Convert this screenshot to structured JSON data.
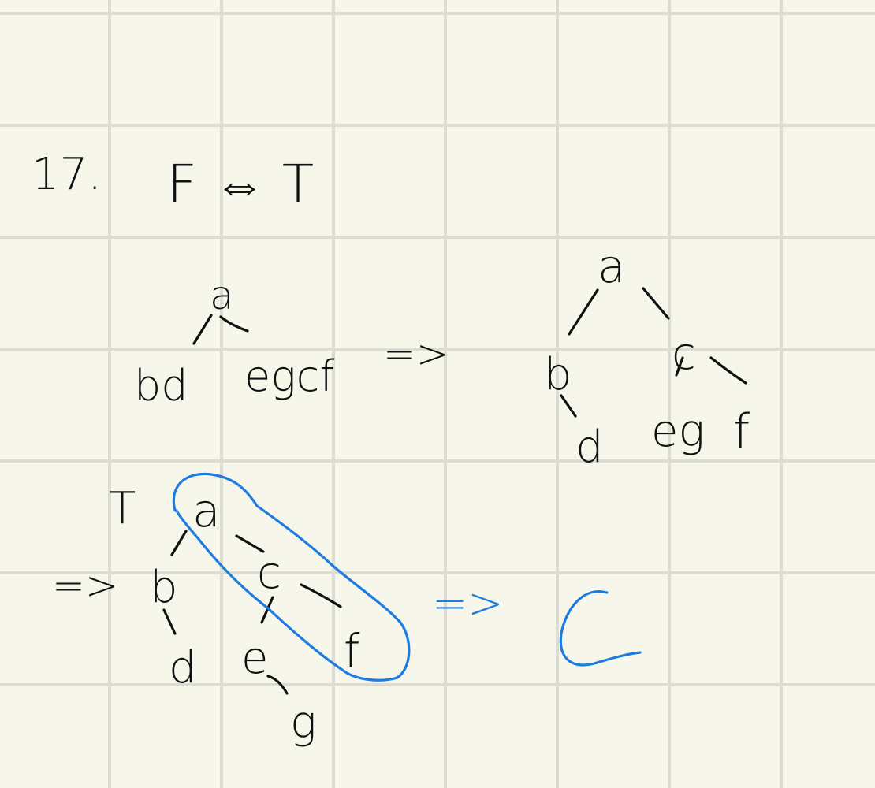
{
  "page": {
    "problem_number": "17.",
    "statement": "F ⇔ T",
    "paper_colors": {
      "background": "#f7f6ea",
      "grid": "#dcdcd2",
      "ink": "#111111",
      "highlight": "#1e7be0"
    }
  },
  "step1": {
    "root": "a",
    "left": "bd",
    "right": "egcf",
    "arrow": "=>"
  },
  "tree1": {
    "root": "a",
    "left": "b",
    "right": "c",
    "left_child": "d",
    "mid": "eg",
    "right_leaf": "f"
  },
  "tree2": {
    "label": "T",
    "arrow": "=>",
    "root": "a",
    "left": "b",
    "right": "c",
    "leaf_d": "d",
    "leaf_e": "e",
    "leaf_f": "f",
    "leaf_g": "g"
  },
  "result": {
    "arrow": "=>",
    "answer": "C"
  }
}
